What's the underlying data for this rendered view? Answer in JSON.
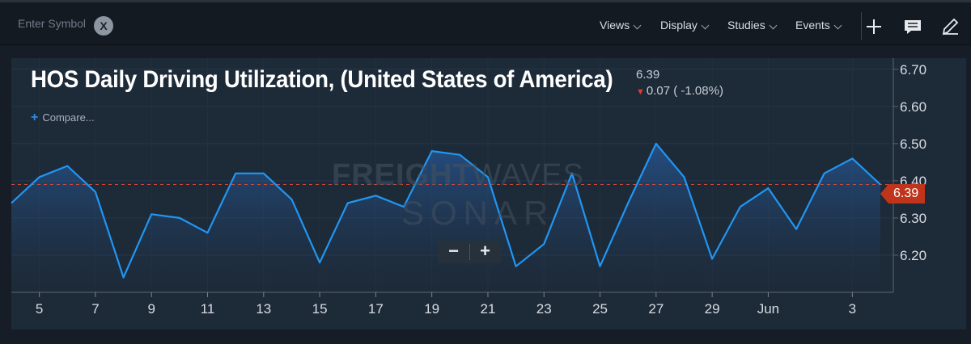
{
  "topbar": {
    "symbol_placeholder": "Enter Symbol",
    "clear_label": "X",
    "menus": [
      "Views",
      "Display",
      "Studies",
      "Events"
    ]
  },
  "header": {
    "title": "HOS Daily Driving Utilization, (United States of America)",
    "last_value": "6.39",
    "change": "0.07 ( -1.08%)",
    "compare_label": "Compare..."
  },
  "watermark": {
    "line1_bold": "FREIGHT",
    "line1_thin": "WAVES",
    "line2": "SONAR"
  },
  "zoom": {
    "minus": "−",
    "plus": "+"
  },
  "price_badge": "6.39",
  "colors": {
    "line": "#2196f3",
    "accent": "#c0341b",
    "down": "#e53935",
    "background": "#1d2a38"
  },
  "chart_data": {
    "type": "area",
    "y_ticks": [
      "6.70",
      "6.60",
      "6.50",
      "6.40",
      "6.30",
      "6.20"
    ],
    "y_tick_values": [
      6.7,
      6.6,
      6.5,
      6.4,
      6.3,
      6.2
    ],
    "ylim": [
      6.1,
      6.73
    ],
    "x_ticks": [
      {
        "label": "5",
        "day": 5
      },
      {
        "label": "7",
        "day": 7
      },
      {
        "label": "9",
        "day": 9
      },
      {
        "label": "11",
        "day": 11
      },
      {
        "label": "13",
        "day": 13
      },
      {
        "label": "15",
        "day": 15
      },
      {
        "label": "17",
        "day": 17
      },
      {
        "label": "19",
        "day": 19
      },
      {
        "label": "21",
        "day": 21
      },
      {
        "label": "23",
        "day": 23
      },
      {
        "label": "25",
        "day": 25
      },
      {
        "label": "27",
        "day": 27
      },
      {
        "label": "29",
        "day": 29
      },
      {
        "label": "Jun",
        "day": 31
      },
      {
        "label": "3",
        "day": 34
      }
    ],
    "x": [
      4,
      5,
      6,
      7,
      8,
      9,
      10,
      11,
      12,
      13,
      14,
      15,
      16,
      17,
      18,
      19,
      20,
      21,
      22,
      23,
      24,
      25,
      26,
      27,
      28,
      29,
      30,
      31,
      32,
      33,
      34,
      35
    ],
    "values": [
      6.34,
      6.41,
      6.44,
      6.37,
      6.14,
      6.31,
      6.3,
      6.26,
      6.42,
      6.42,
      6.35,
      6.18,
      6.34,
      6.36,
      6.33,
      6.48,
      6.47,
      6.41,
      6.17,
      6.23,
      6.42,
      6.17,
      6.34,
      6.5,
      6.41,
      6.19,
      6.33,
      6.38,
      6.27,
      6.42,
      6.46,
      6.39
    ],
    "reference_line": 6.39
  }
}
